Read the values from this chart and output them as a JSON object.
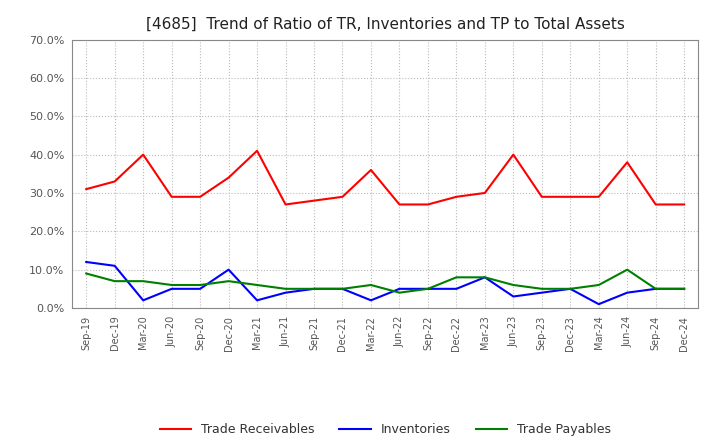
{
  "title": "[4685]  Trend of Ratio of TR, Inventories and TP to Total Assets",
  "x_labels": [
    "Sep-19",
    "Dec-19",
    "Mar-20",
    "Jun-20",
    "Sep-20",
    "Dec-20",
    "Mar-21",
    "Jun-21",
    "Sep-21",
    "Dec-21",
    "Mar-22",
    "Jun-22",
    "Sep-22",
    "Dec-22",
    "Mar-23",
    "Jun-23",
    "Sep-23",
    "Dec-23",
    "Mar-24",
    "Jun-24",
    "Sep-24",
    "Dec-24"
  ],
  "trade_receivables": [
    0.31,
    0.33,
    0.4,
    0.29,
    0.29,
    0.34,
    0.41,
    0.27,
    0.28,
    0.29,
    0.36,
    0.27,
    0.27,
    0.29,
    0.3,
    0.4,
    0.29,
    0.29,
    0.29,
    0.38,
    0.27,
    0.27
  ],
  "inventories": [
    0.12,
    0.11,
    0.02,
    0.05,
    0.05,
    0.1,
    0.02,
    0.04,
    0.05,
    0.05,
    0.02,
    0.05,
    0.05,
    0.05,
    0.08,
    0.03,
    0.04,
    0.05,
    0.01,
    0.04,
    0.05,
    0.05
  ],
  "trade_payables": [
    0.09,
    0.07,
    0.07,
    0.06,
    0.06,
    0.07,
    0.06,
    0.05,
    0.05,
    0.05,
    0.06,
    0.04,
    0.05,
    0.08,
    0.08,
    0.06,
    0.05,
    0.05,
    0.06,
    0.1,
    0.05,
    0.05
  ],
  "ylim": [
    0.0,
    0.7
  ],
  "yticks": [
    0.0,
    0.1,
    0.2,
    0.3,
    0.4,
    0.5,
    0.6,
    0.7
  ],
  "color_tr": "#FF0000",
  "color_inv": "#0000FF",
  "color_tp": "#008000",
  "background_color": "#FFFFFF",
  "grid_color": "#BBBBBB",
  "legend_labels": [
    "Trade Receivables",
    "Inventories",
    "Trade Payables"
  ],
  "title_fontsize": 11,
  "tick_label_color": "#555555",
  "line_width": 1.5
}
